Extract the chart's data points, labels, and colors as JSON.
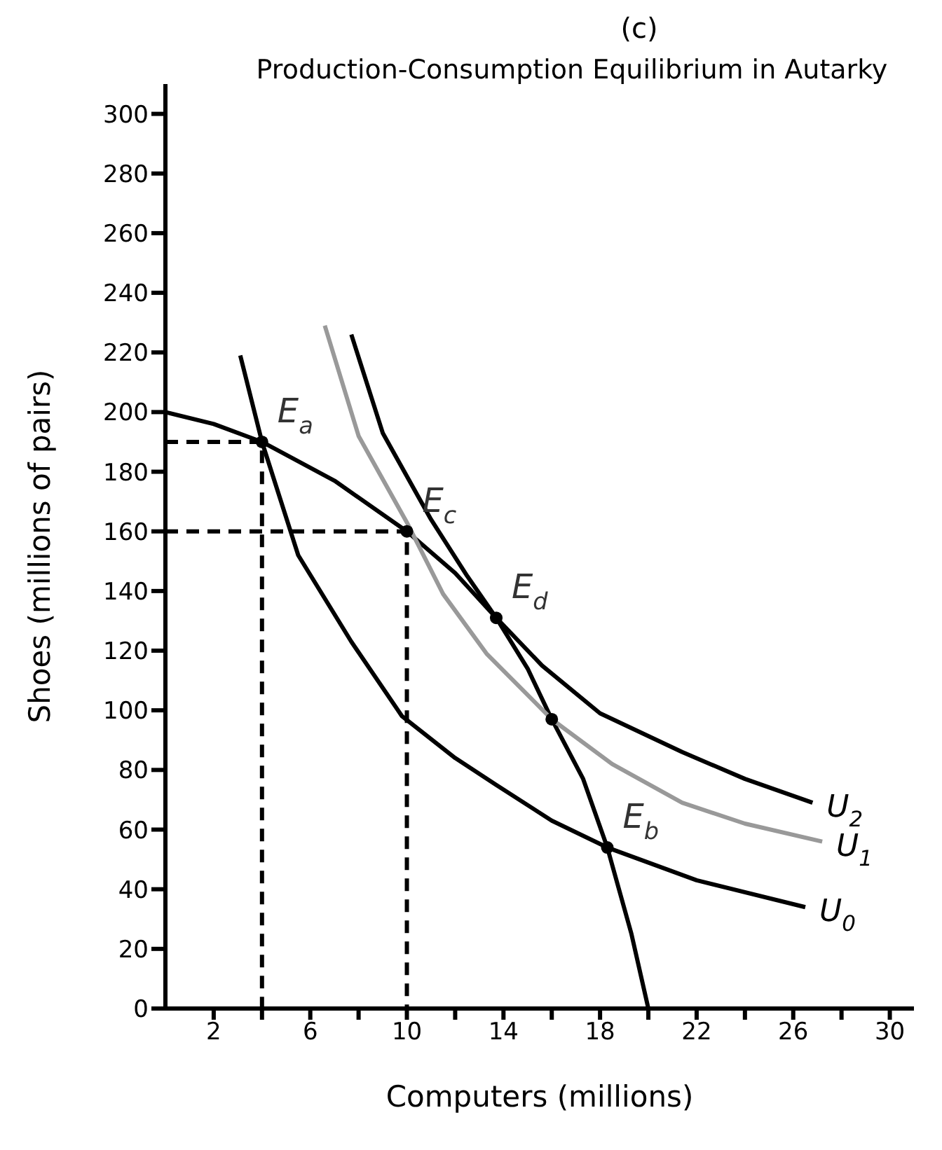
{
  "chart_data": {
    "type": "line",
    "title": "(c)",
    "subtitle": "Production-Consumption Equilibrium in Autarky",
    "xlabel": "Computers (millions)",
    "ylabel": "Shoes (millions of pairs)",
    "xlim": [
      0,
      31
    ],
    "ylim": [
      0,
      310
    ],
    "xticks": [
      2,
      {
        "value": 4,
        "label": null
      },
      6,
      {
        "value": 8,
        "label": null
      },
      10,
      {
        "value": 12,
        "label": null
      },
      14,
      {
        "value": 16,
        "label": null
      },
      18,
      {
        "value": 20,
        "label": null
      },
      22,
      {
        "value": 24,
        "label": null
      },
      26,
      {
        "value": 28,
        "label": null
      },
      30
    ],
    "yticks": [
      0,
      20,
      40,
      60,
      80,
      100,
      120,
      140,
      160,
      180,
      200,
      220,
      240,
      260,
      280,
      300
    ],
    "grid": false,
    "legend": false,
    "marker": "none",
    "series": [
      {
        "color": "#000000",
        "x": [
          0,
          2,
          4,
          7,
          10,
          12,
          13.7,
          15,
          16,
          17.3,
          18.3,
          19.3,
          20
        ],
        "values": [
          200,
          196,
          190,
          177,
          160,
          146,
          131,
          114,
          97,
          77,
          54,
          25,
          0
        ]
      },
      {
        "name": "U$_{0}$",
        "color": "#000000",
        "x": [
          3.1,
          4,
          5.5,
          7.7,
          9.8,
          12,
          13.7,
          16,
          18.3,
          22,
          26.5
        ],
        "values": [
          219,
          190,
          152,
          123,
          98,
          84,
          75,
          63,
          54,
          43,
          34
        ]
      },
      {
        "name": "U$_{1}$",
        "color": "#999999",
        "x": [
          6.6,
          8,
          10,
          11.5,
          13.3,
          16,
          18.5,
          21.4,
          24,
          27.2
        ],
        "values": [
          229,
          192,
          163,
          139,
          119,
          97,
          82,
          69,
          62,
          56
        ]
      },
      {
        "name": "U$_{2}$",
        "color": "#000000",
        "x": [
          7.7,
          9,
          11,
          12.5,
          13.7,
          15.6,
          18,
          21.4,
          24,
          26.8
        ],
        "values": [
          226,
          193,
          164,
          145,
          131,
          115,
          99,
          86,
          77,
          69
        ]
      },
      {
        "color": "#000000",
        "line_style": "dashed",
        "x": [
          0,
          4,
          4
        ],
        "values": [
          190,
          190,
          0
        ]
      },
      {
        "color": "#000000",
        "line_style": "dashed",
        "x": [
          0,
          10,
          10
        ],
        "values": [
          160,
          160,
          0
        ]
      },
      {
        "type": "scatter",
        "color": "#000000",
        "marker": "circle",
        "x": [
          4,
          10,
          13.7,
          16,
          18.3
        ],
        "values": [
          190,
          160,
          131,
          97,
          54
        ]
      }
    ],
    "annotations": [
      {
        "text": "E$_{a}$",
        "x": 4,
        "y": 190
      },
      {
        "text": "E$_{c}$",
        "x": 10,
        "y": 160
      },
      {
        "text": "E$_{d}$",
        "x": 13.7,
        "y": 131
      },
      {
        "text": "E$_{b}$",
        "x": 18.3,
        "y": 54
      }
    ]
  }
}
